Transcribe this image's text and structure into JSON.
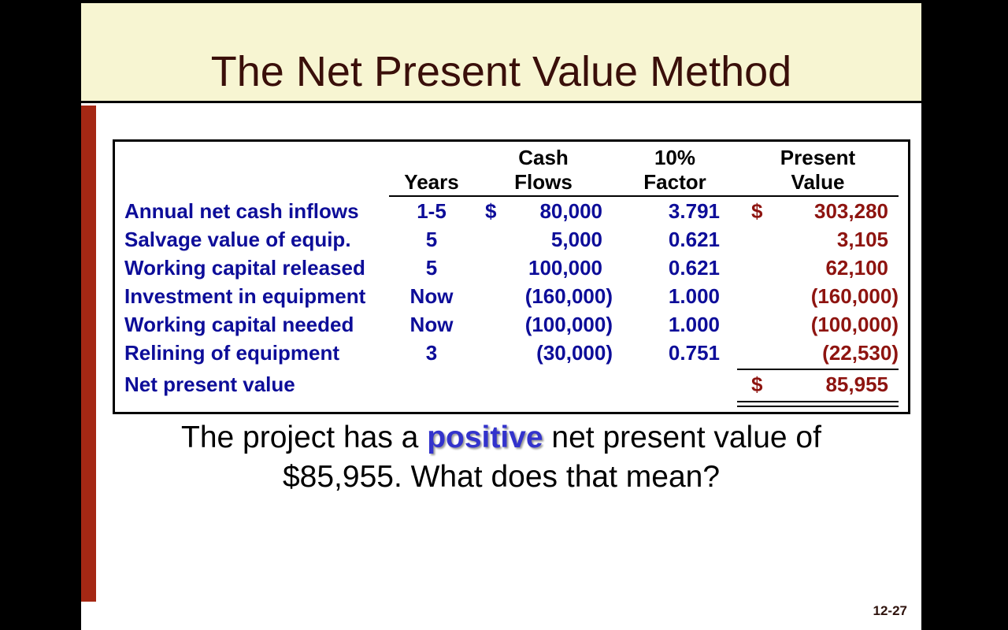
{
  "slide": {
    "title": "The Net Present Value Method",
    "page_number": "12-27"
  },
  "colors": {
    "title_text": "#3A0F0A",
    "band_background": "#F7F5D2",
    "accent_bar": "#A52814",
    "label_navy": "#0D0D99",
    "present_value_red": "#8E1410",
    "highlight_blue": "#3333CC"
  },
  "table": {
    "columns": [
      {
        "line1": "",
        "line2": ""
      },
      {
        "line1": "",
        "line2": "Years"
      },
      {
        "line1": "Cash",
        "line2": "Flows"
      },
      {
        "line1": "10%",
        "line2": "Factor"
      },
      {
        "line1": "Present",
        "line2": "Value"
      }
    ],
    "rows": [
      {
        "label": "Annual net cash inflows",
        "years": "1-5",
        "cf_dollar": "$",
        "cash_flow": "80,000",
        "factor": "3.791",
        "pv_dollar": "$",
        "present_value": "303,280"
      },
      {
        "label": "Salvage value of equip.",
        "years": "5",
        "cf_dollar": "",
        "cash_flow": "5,000",
        "factor": "0.621",
        "pv_dollar": "",
        "present_value": "3,105"
      },
      {
        "label": "Working capital released",
        "years": "5",
        "cf_dollar": "",
        "cash_flow": "100,000",
        "factor": "0.621",
        "pv_dollar": "",
        "present_value": "62,100"
      },
      {
        "label": "Investment in equipment",
        "years": "Now",
        "cf_dollar": "",
        "cash_flow": "(160,000)",
        "factor": "1.000",
        "pv_dollar": "",
        "present_value": "(160,000)"
      },
      {
        "label": "Working capital needed",
        "years": "Now",
        "cf_dollar": "",
        "cash_flow": "(100,000)",
        "factor": "1.000",
        "pv_dollar": "",
        "present_value": "(100,000)"
      },
      {
        "label": "Relining of equipment",
        "years": "3",
        "cf_dollar": "",
        "cash_flow": "(30,000)",
        "factor": "0.751",
        "pv_dollar": "",
        "present_value": "(22,530)"
      }
    ],
    "total_row": {
      "label": "Net present value",
      "years": "",
      "cf_dollar": "",
      "cash_flow": "",
      "factor": "",
      "pv_dollar": "$",
      "present_value": "85,955"
    }
  },
  "message": {
    "line1_before": "The project has a ",
    "line1_highlight": "positive",
    "line1_after": " net present value of",
    "line2": "$85,955. What does that mean?"
  }
}
